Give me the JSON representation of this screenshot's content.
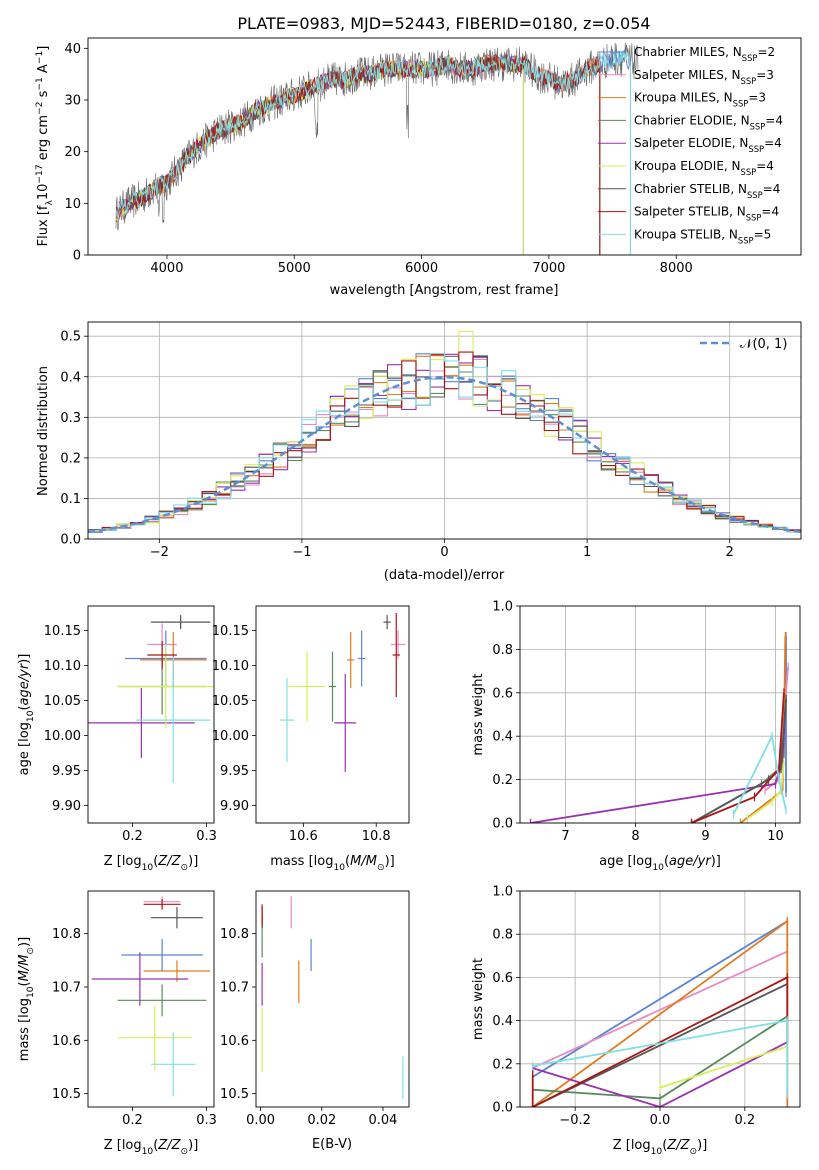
{
  "figure_title": "PLATE=0983, MJD=52443, FIBERID=0180, z=0.054",
  "colors": {
    "chabrier_miles": "#5b84d6",
    "salpeter_miles": "#e98ac4",
    "kroupa_miles": "#e07b1f",
    "chabrier_elodie": "#5a8a5a",
    "salpeter_elodie": "#9b30b0",
    "kroupa_elodie": "#d8ee5a",
    "chabrier_stelib": "#555555",
    "salpeter_stelib": "#aa1515",
    "kroupa_stelib": "#80dfe6",
    "gaussian": "#5b8fd6"
  },
  "chart_data": [
    {
      "id": "spectrum",
      "type": "line",
      "title": "PLATE=0983, MJD=52443, FIBERID=0180, z=0.054",
      "xlabel": "wavelength [Angstrom, rest frame]",
      "ylabel_parts": [
        "Flux [f",
        "λ",
        "10",
        "−17",
        " erg cm",
        "−2",
        " s",
        "−1",
        " A",
        "−1",
        "]"
      ],
      "xlim": [
        3380,
        8980
      ],
      "ylim": [
        0,
        42
      ],
      "xticks": [
        4000,
        5000,
        6000,
        7000,
        8000
      ],
      "yticks": [
        0,
        10,
        20,
        30,
        40
      ],
      "grid": false,
      "legend_position": "right",
      "continuum": {
        "x": [
          3600,
          3700,
          3800,
          3900,
          4000,
          4100,
          4200,
          4300,
          4400,
          4500,
          4600,
          4700,
          4800,
          4900,
          5000,
          5100,
          5200,
          5300,
          5400,
          5500,
          5600,
          5700,
          5800,
          5900,
          6000,
          6100,
          6200,
          6300,
          6400,
          6500,
          6600,
          6700,
          6800,
          6900,
          7000,
          7100,
          7200,
          7300,
          7400,
          7500,
          7600,
          7700
        ],
        "y": [
          8,
          10,
          11,
          13,
          14,
          17,
          20,
          22,
          24,
          25,
          26,
          28,
          29,
          30,
          31,
          32,
          33,
          34,
          34,
          35,
          35,
          36,
          36,
          36,
          36,
          36,
          37,
          36,
          36,
          37,
          37,
          37,
          37,
          35,
          34,
          33,
          34,
          36,
          37,
          38,
          38,
          37
        ]
      },
      "series": [
        {
          "name": "Chabrier MILES",
          "nssp": "2",
          "end_x": 7640
        },
        {
          "name": "Salpeter MILES",
          "nssp": "3",
          "end_x": 7400
        },
        {
          "name": "Kroupa MILES",
          "nssp": "3",
          "end_x": 7400
        },
        {
          "name": "Chabrier ELODIE",
          "nssp": "4",
          "end_x": 6800
        },
        {
          "name": "Salpeter ELODIE",
          "nssp": "4",
          "end_x": 6800
        },
        {
          "name": "Kroupa ELODIE",
          "nssp": "4",
          "end_x": 6800
        },
        {
          "name": "Chabrier STELIB",
          "nssp": "4",
          "end_x": 7400
        },
        {
          "name": "Salpeter STELIB",
          "nssp": "4",
          "end_x": 7400
        },
        {
          "name": "Kroupa STELIB",
          "nssp": "5",
          "end_x": 7640
        }
      ]
    },
    {
      "id": "residuals",
      "type": "bar",
      "xlabel": "(data-model)/error",
      "ylabel": "Normed distribution",
      "xlim": [
        -2.5,
        2.5
      ],
      "ylim": [
        0,
        0.535
      ],
      "xticks": [
        -2,
        -1,
        0,
        1,
        2
      ],
      "yticks": [
        0.0,
        0.1,
        0.2,
        0.3,
        0.4,
        0.5
      ],
      "grid": true,
      "legend_position": "top-right",
      "legend_label": "𝒩(0, 1)",
      "bin_width": 0.1
    },
    {
      "id": "age_vs_Z",
      "type": "scatter",
      "xlabel": "Z [log10(Z/Z⊙)]",
      "ylabel": "age  [log10(age/yr)]",
      "xlim": [
        0.14,
        0.31
      ],
      "ylim": [
        9.875,
        10.185
      ],
      "xticks": [
        0.2,
        0.3
      ],
      "yticks": [
        9.9,
        9.95,
        10.0,
        10.05,
        10.1,
        10.15
      ],
      "points": [
        {
          "x": 0.245,
          "y": 10.11,
          "xerr": 0.055,
          "yerr": 0.04
        },
        {
          "x": 0.24,
          "y": 10.13,
          "xerr": 0.02,
          "yerr": 0.03
        },
        {
          "x": 0.255,
          "y": 10.108,
          "xerr": 0.045,
          "yerr": 0.04
        },
        {
          "x": 0.24,
          "y": 10.07,
          "xerr": 0.06,
          "yerr": 0.04
        },
        {
          "x": 0.212,
          "y": 10.018,
          "xerr": 0.072,
          "yerr": 0.05
        },
        {
          "x": 0.245,
          "y": 10.07,
          "xerr": 0.065,
          "yerr": 0.06
        },
        {
          "x": 0.265,
          "y": 10.162,
          "xerr": 0.04,
          "yerr": 0.01
        },
        {
          "x": 0.24,
          "y": 10.115,
          "xerr": 0.02,
          "yerr": 0.02
        },
        {
          "x": 0.255,
          "y": 10.022,
          "xerr": 0.05,
          "yerr": 0.09
        }
      ]
    },
    {
      "id": "age_vs_mass",
      "type": "scatter",
      "xlabel": "mass [log10(M/M⊙)]",
      "ylabel": "",
      "xlim": [
        10.47,
        10.89
      ],
      "ylim": [
        9.875,
        10.185
      ],
      "xticks": [
        10.6,
        10.8
      ],
      "yticks": [
        9.9,
        9.95,
        10.0,
        10.05,
        10.1,
        10.15
      ],
      "points": [
        {
          "x": 10.76,
          "y": 10.11,
          "xerr": 0.01,
          "yerr": 0.04
        },
        {
          "x": 10.86,
          "y": 10.13,
          "xerr": 0.02,
          "yerr": 0.02
        },
        {
          "x": 10.73,
          "y": 10.108,
          "xerr": 0.01,
          "yerr": 0.04
        },
        {
          "x": 10.68,
          "y": 10.07,
          "xerr": 0.01,
          "yerr": 0.05
        },
        {
          "x": 10.715,
          "y": 10.018,
          "xerr": 0.03,
          "yerr": 0.07
        },
        {
          "x": 10.61,
          "y": 10.07,
          "xerr": 0.05,
          "yerr": 0.05
        },
        {
          "x": 10.83,
          "y": 10.162,
          "xerr": 0.01,
          "yerr": 0.01
        },
        {
          "x": 10.855,
          "y": 10.115,
          "xerr": 0.01,
          "yerr": 0.06
        },
        {
          "x": 10.555,
          "y": 10.022,
          "xerr": 0.02,
          "yerr": 0.06
        }
      ]
    },
    {
      "id": "mass_weight_vs_age",
      "type": "line",
      "xlabel": "age  [log10(age/yr)]",
      "ylabel": "mass weight",
      "xlim": [
        6.35,
        10.35
      ],
      "ylim": [
        0,
        1
      ],
      "xticks": [
        7,
        8,
        9,
        10
      ],
      "yticks": [
        0.0,
        0.2,
        0.4,
        0.6,
        0.8,
        1.0
      ],
      "grid": true,
      "series": [
        {
          "name": "Chabrier MILES",
          "x": [
            10.15,
            10.15,
            10.12
          ],
          "y": [
            0.14,
            0.86,
            0.3
          ]
        },
        {
          "name": "Salpeter MILES",
          "x": [
            9.85,
            10.05,
            10.18
          ],
          "y": [
            0.15,
            0.2,
            0.72
          ]
        },
        {
          "name": "Kroupa MILES",
          "x": [
            9.5,
            10.1,
            10.12,
            10.14
          ],
          "y": [
            0.0,
            0.15,
            0.4,
            0.86
          ]
        },
        {
          "name": "Chabrier ELODIE",
          "x": [
            8.8,
            9.8,
            10.05,
            10.12
          ],
          "y": [
            0.0,
            0.18,
            0.25,
            0.42
          ]
        },
        {
          "name": "Salpeter ELODIE",
          "x": [
            6.5,
            10.0,
            10.1,
            10.14
          ],
          "y": [
            0.0,
            0.18,
            0.3,
            0.52
          ]
        },
        {
          "name": "Kroupa ELODIE",
          "x": [
            9.6,
            9.95,
            10.08,
            10.12
          ],
          "y": [
            0.02,
            0.1,
            0.15,
            0.28
          ]
        },
        {
          "name": "Chabrier STELIB",
          "x": [
            8.8,
            9.9,
            10.08,
            10.15
          ],
          "y": [
            0.0,
            0.2,
            0.25,
            0.57
          ]
        },
        {
          "name": "Salpeter STELIB",
          "x": [
            8.8,
            9.7,
            10.05,
            10.12
          ],
          "y": [
            0.0,
            0.12,
            0.25,
            0.6
          ]
        },
        {
          "name": "Kroupa STELIB",
          "x": [
            9.4,
            9.95,
            10.05,
            10.15
          ],
          "y": [
            0.04,
            0.4,
            0.2,
            0.06
          ]
        }
      ]
    },
    {
      "id": "mass_vs_Z",
      "type": "scatter",
      "xlabel": "Z [log10(Z/Z⊙)]",
      "ylabel": "mass [log10(M/M⊙)]",
      "xlim": [
        0.14,
        0.31
      ],
      "ylim": [
        10.475,
        10.88
      ],
      "xticks": [
        0.2,
        0.3
      ],
      "yticks": [
        10.5,
        10.6,
        10.7,
        10.8
      ],
      "points": [
        {
          "x": 0.24,
          "y": 10.76,
          "xerr": 0.055,
          "yerr": 0.03
        },
        {
          "x": 0.24,
          "y": 10.86,
          "xerr": 0.025,
          "yerr": 0.01
        },
        {
          "x": 0.26,
          "y": 10.73,
          "xerr": 0.045,
          "yerr": 0.02
        },
        {
          "x": 0.24,
          "y": 10.675,
          "xerr": 0.06,
          "yerr": 0.03
        },
        {
          "x": 0.21,
          "y": 10.715,
          "xerr": 0.065,
          "yerr": 0.05
        },
        {
          "x": 0.23,
          "y": 10.605,
          "xerr": 0.05,
          "yerr": 0.06
        },
        {
          "x": 0.26,
          "y": 10.83,
          "xerr": 0.035,
          "yerr": 0.02
        },
        {
          "x": 0.24,
          "y": 10.855,
          "xerr": 0.025,
          "yerr": 0.01
        },
        {
          "x": 0.255,
          "y": 10.555,
          "xerr": 0.03,
          "yerr": 0.06
        }
      ]
    },
    {
      "id": "mass_vs_ebv",
      "type": "scatter",
      "xlabel": "E(B-V)",
      "ylabel": "",
      "xlim": [
        -0.0015,
        0.0485
      ],
      "ylim": [
        10.475,
        10.88
      ],
      "xticks": [
        0.0,
        0.02,
        0.04
      ],
      "yticks": [
        10.5,
        10.6,
        10.7,
        10.8
      ],
      "points": [
        {
          "x": 0.0165,
          "y": 10.76,
          "yerr": 0.03
        },
        {
          "x": 0.01,
          "y": 10.84,
          "yerr": 0.03
        },
        {
          "x": 0.0125,
          "y": 10.71,
          "yerr": 0.04
        },
        {
          "x": 0.0005,
          "y": 10.795,
          "yerr": 0.04
        },
        {
          "x": 0.0005,
          "y": 10.705,
          "yerr": 0.04
        },
        {
          "x": 0.0005,
          "y": 10.6,
          "yerr": 0.06
        },
        {
          "x": 0.0005,
          "y": 10.83,
          "yerr": 0.02
        },
        {
          "x": 0.0005,
          "y": 10.835,
          "yerr": 0.02
        },
        {
          "x": 0.0465,
          "y": 10.53,
          "yerr": 0.04
        }
      ]
    },
    {
      "id": "mass_weight_vs_Z",
      "type": "line",
      "xlabel": "Z [log10(Z/Z⊙)]",
      "ylabel": "mass weight",
      "xlim": [
        -0.33,
        0.33
      ],
      "ylim": [
        0,
        1
      ],
      "xticks": [
        -0.2,
        0.0,
        0.2
      ],
      "yticks": [
        0.0,
        0.2,
        0.4,
        0.6,
        0.8,
        1.0
      ],
      "grid": true,
      "series": [
        {
          "name": "Chabrier MILES",
          "x": [
            -0.3,
            0.3
          ],
          "y": [
            0.14,
            0.86
          ]
        },
        {
          "name": "Salpeter MILES",
          "x": [
            -0.3,
            0.3
          ],
          "y": [
            0.18,
            0.72
          ]
        },
        {
          "name": "Kroupa MILES",
          "x": [
            -0.3,
            0.3,
            0.3
          ],
          "y": [
            0.0,
            0.86,
            0.0
          ]
        },
        {
          "name": "Chabrier ELODIE",
          "x": [
            -0.3,
            0.0,
            0.3
          ],
          "y": [
            0.08,
            0.04,
            0.42
          ]
        },
        {
          "name": "Salpeter ELODIE",
          "x": [
            -0.3,
            0.0,
            0.3
          ],
          "y": [
            0.18,
            0.0,
            0.3
          ]
        },
        {
          "name": "Kroupa ELODIE",
          "x": [
            0.0,
            0.3
          ],
          "y": [
            0.09,
            0.28
          ]
        },
        {
          "name": "Chabrier STELIB",
          "x": [
            -0.3,
            0.3
          ],
          "y": [
            0.0,
            0.57
          ]
        },
        {
          "name": "Salpeter STELIB",
          "x": [
            -0.3,
            -0.3,
            0.3,
            0.3
          ],
          "y": [
            0.15,
            0.0,
            0.6,
            0.3
          ]
        },
        {
          "name": "Kroupa STELIB",
          "x": [
            -0.3,
            0.3,
            0.3
          ],
          "y": [
            0.19,
            0.4,
            0.06
          ]
        }
      ]
    }
  ]
}
